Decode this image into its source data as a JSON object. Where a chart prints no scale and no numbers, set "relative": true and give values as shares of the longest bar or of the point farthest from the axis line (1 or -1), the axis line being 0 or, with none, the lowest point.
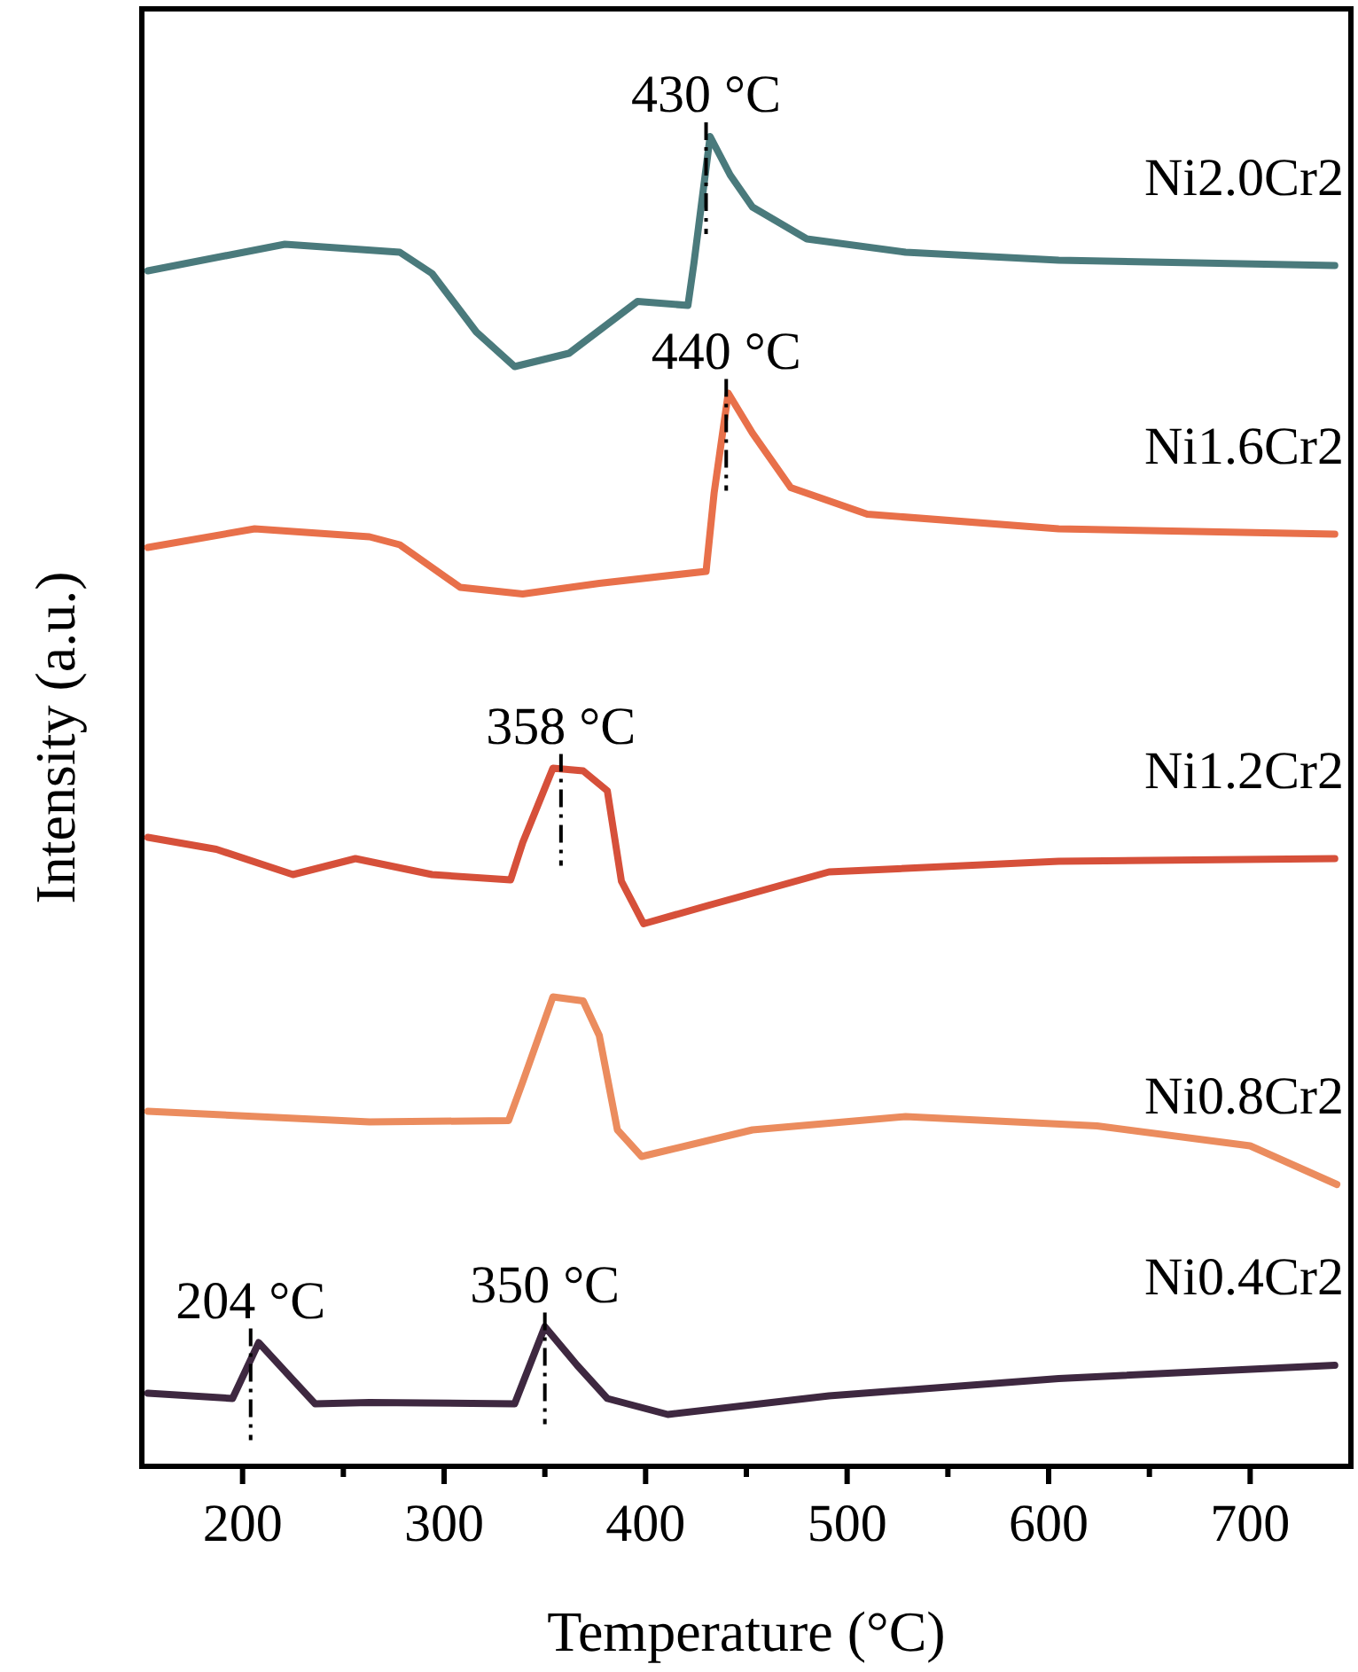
{
  "chart_data": {
    "type": "line",
    "relative": true,
    "xlabel": "Temperature (°C)",
    "ylabel": "Intensity (a.u.)",
    "xlim": [
      150,
      750
    ],
    "xticks": [
      200,
      {
        "value": 250,
        "label": null
      },
      300,
      {
        "value": 350,
        "label": null
      },
      400,
      {
        "value": 450,
        "label": null
      },
      500,
      {
        "value": 550,
        "label": null
      },
      600,
      {
        "value": 650,
        "label": null
      },
      700
    ],
    "series": [
      {
        "name": "Ni2.0Cr2",
        "color": "#4a7a7c",
        "x": [
          153,
          221,
          278,
          294,
          316,
          335,
          362,
          396,
          421,
          424,
          432,
          442,
          453,
          480,
          529,
          605,
          742
        ],
        "values": [
          0.899,
          0.919,
          0.913,
          0.897,
          0.853,
          0.827,
          0.837,
          0.876,
          0.873,
          0.905,
          1,
          0.971,
          0.947,
          0.923,
          0.913,
          0.907,
          0.903
        ]
      },
      {
        "name": "Ni1.6Cr2",
        "color": "#e8704a",
        "x": [
          153,
          206,
          263,
          278,
          308,
          339,
          377,
          430,
          434,
          441,
          453,
          472,
          510,
          605,
          742
        ],
        "values": [
          0.691,
          0.705,
          0.699,
          0.693,
          0.661,
          0.656,
          0.664,
          0.673,
          0.732,
          0.807,
          0.777,
          0.736,
          0.716,
          0.705,
          0.701
        ]
      },
      {
        "name": "Ni1.2Cr2",
        "color": "#d6503a",
        "x": [
          153,
          187,
          225,
          256,
          294,
          333,
          339,
          354,
          369,
          381,
          388,
          399,
          434,
          491,
          605,
          742
        ],
        "values": [
          0.473,
          0.464,
          0.445,
          0.457,
          0.445,
          0.441,
          0.469,
          0.525,
          0.523,
          0.508,
          0.44,
          0.408,
          0.423,
          0.447,
          0.455,
          0.457
        ]
      },
      {
        "name": "Ni0.8Cr2",
        "color": "#eb8c5e",
        "x": [
          153,
          263,
          332,
          339,
          354,
          369,
          377,
          386,
          398,
          453,
          529,
          624,
          700,
          743
        ],
        "values": [
          0.267,
          0.259,
          0.26,
          0.289,
          0.353,
          0.35,
          0.324,
          0.253,
          0.233,
          0.253,
          0.263,
          0.256,
          0.241,
          0.212
        ]
      },
      {
        "name": "Ni0.4Cr2",
        "color": "#3e2840",
        "x": [
          153,
          195,
          208,
          225,
          236,
          263,
          335,
          350,
          366,
          381,
          411,
          491,
          605,
          742
        ],
        "values": [
          0.055,
          0.051,
          0.093,
          0.065,
          0.047,
          0.048,
          0.047,
          0.105,
          0.076,
          0.051,
          0.039,
          0.053,
          0.066,
          0.076
        ]
      }
    ],
    "annotations": [
      {
        "text": "430 °C",
        "x": 430,
        "y": 1
      },
      {
        "text": "440 °C",
        "x": 440,
        "y": 0.807
      },
      {
        "text": "358 °C",
        "x": 358,
        "y": 0.525
      },
      {
        "text": "204 °C",
        "x": 204,
        "y": 0.093
      },
      {
        "text": "350 °C",
        "x": 350,
        "y": 0.105
      }
    ]
  }
}
